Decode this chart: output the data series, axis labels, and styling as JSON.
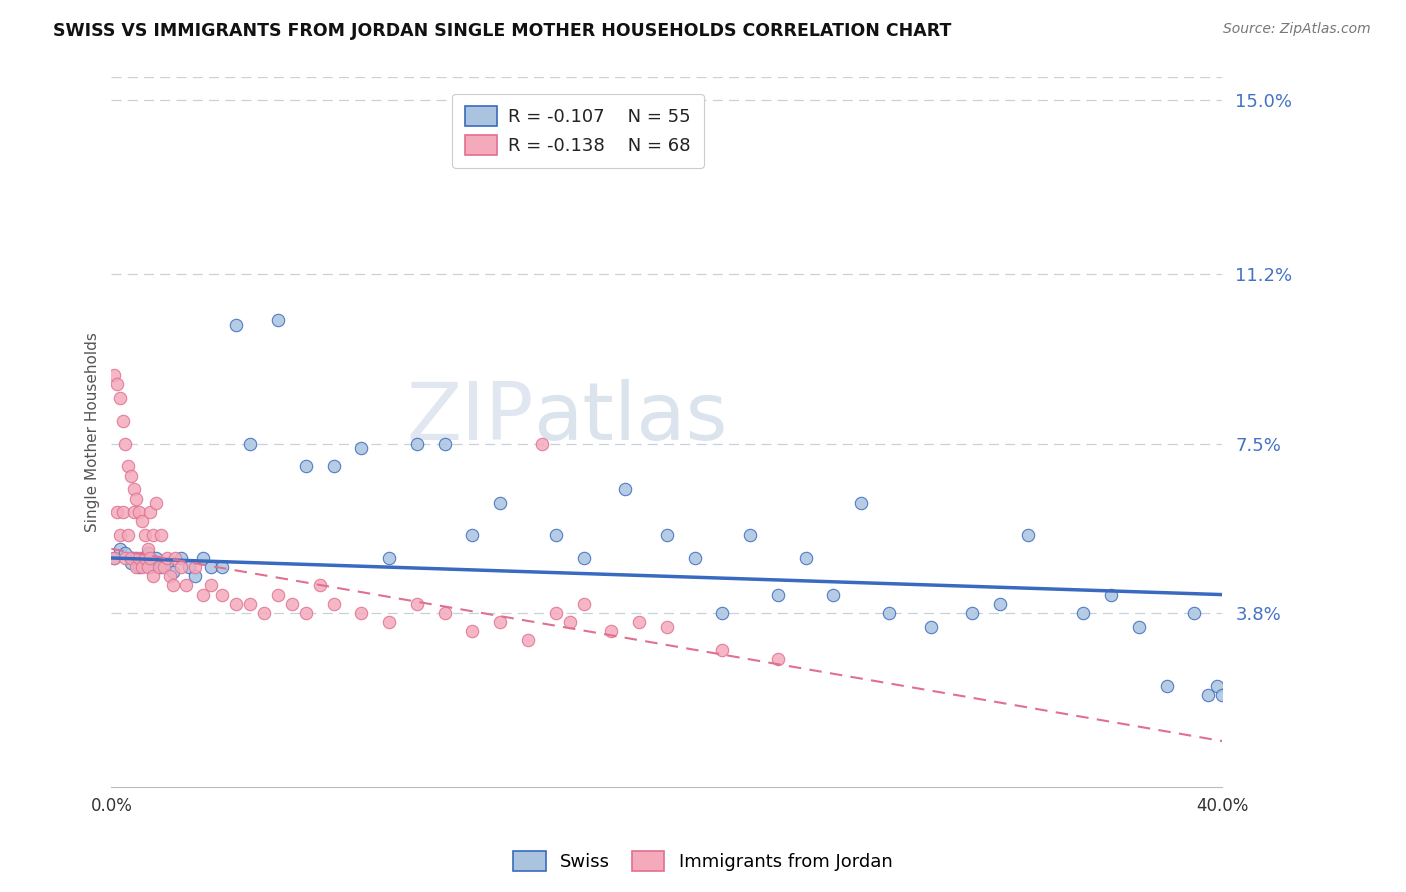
{
  "title": "SWISS VS IMMIGRANTS FROM JORDAN SINGLE MOTHER HOUSEHOLDS CORRELATION CHART",
  "source": "Source: ZipAtlas.com",
  "ylabel": "Single Mother Households",
  "xlim": [
    0.0,
    0.4
  ],
  "ylim": [
    0.0,
    0.155
  ],
  "yticks": [
    0.038,
    0.075,
    0.112,
    0.15
  ],
  "ytick_labels": [
    "3.8%",
    "7.5%",
    "11.2%",
    "15.0%"
  ],
  "swiss_color": "#aac4e0",
  "jordan_color": "#f4aabb",
  "swiss_line_color": "#3a6abf",
  "jordan_line_color": "#e07090",
  "legend_swiss_label": "Swiss",
  "legend_jordan_label": "Immigrants from Jordan",
  "watermark": "ZIPatlas",
  "swiss_x": [
    0.001,
    0.003,
    0.005,
    0.007,
    0.009,
    0.01,
    0.011,
    0.012,
    0.013,
    0.014,
    0.016,
    0.018,
    0.02,
    0.022,
    0.025,
    0.028,
    0.03,
    0.033,
    0.036,
    0.04,
    0.045,
    0.05,
    0.06,
    0.07,
    0.08,
    0.09,
    0.1,
    0.11,
    0.12,
    0.13,
    0.14,
    0.16,
    0.17,
    0.185,
    0.2,
    0.21,
    0.22,
    0.23,
    0.24,
    0.25,
    0.26,
    0.27,
    0.28,
    0.295,
    0.31,
    0.32,
    0.33,
    0.35,
    0.36,
    0.37,
    0.38,
    0.39,
    0.395,
    0.398,
    0.4
  ],
  "swiss_y": [
    0.05,
    0.052,
    0.051,
    0.049,
    0.05,
    0.048,
    0.05,
    0.049,
    0.051,
    0.048,
    0.05,
    0.048,
    0.049,
    0.047,
    0.05,
    0.048,
    0.046,
    0.05,
    0.048,
    0.048,
    0.101,
    0.075,
    0.102,
    0.07,
    0.07,
    0.074,
    0.05,
    0.075,
    0.075,
    0.055,
    0.062,
    0.055,
    0.05,
    0.065,
    0.055,
    0.05,
    0.038,
    0.055,
    0.042,
    0.05,
    0.042,
    0.062,
    0.038,
    0.035,
    0.038,
    0.04,
    0.055,
    0.038,
    0.042,
    0.035,
    0.022,
    0.038,
    0.02,
    0.022,
    0.02
  ],
  "jordan_x": [
    0.001,
    0.001,
    0.002,
    0.002,
    0.003,
    0.003,
    0.004,
    0.004,
    0.005,
    0.005,
    0.006,
    0.006,
    0.007,
    0.007,
    0.008,
    0.008,
    0.009,
    0.009,
    0.01,
    0.01,
    0.011,
    0.011,
    0.012,
    0.012,
    0.013,
    0.013,
    0.014,
    0.014,
    0.015,
    0.015,
    0.016,
    0.017,
    0.018,
    0.019,
    0.02,
    0.021,
    0.022,
    0.023,
    0.025,
    0.027,
    0.03,
    0.033,
    0.036,
    0.04,
    0.045,
    0.05,
    0.055,
    0.06,
    0.065,
    0.07,
    0.075,
    0.08,
    0.09,
    0.1,
    0.11,
    0.12,
    0.13,
    0.14,
    0.15,
    0.155,
    0.16,
    0.165,
    0.17,
    0.18,
    0.19,
    0.2,
    0.22,
    0.24
  ],
  "jordan_y": [
    0.09,
    0.05,
    0.088,
    0.06,
    0.085,
    0.055,
    0.08,
    0.06,
    0.075,
    0.05,
    0.07,
    0.055,
    0.068,
    0.05,
    0.065,
    0.06,
    0.063,
    0.048,
    0.06,
    0.05,
    0.058,
    0.048,
    0.055,
    0.05,
    0.052,
    0.048,
    0.06,
    0.05,
    0.055,
    0.046,
    0.062,
    0.048,
    0.055,
    0.048,
    0.05,
    0.046,
    0.044,
    0.05,
    0.048,
    0.044,
    0.048,
    0.042,
    0.044,
    0.042,
    0.04,
    0.04,
    0.038,
    0.042,
    0.04,
    0.038,
    0.044,
    0.04,
    0.038,
    0.036,
    0.04,
    0.038,
    0.034,
    0.036,
    0.032,
    0.075,
    0.038,
    0.036,
    0.04,
    0.034,
    0.036,
    0.035,
    0.03,
    0.028
  ],
  "swiss_trend_x0": 0.0,
  "swiss_trend_y0": 0.05,
  "swiss_trend_x1": 0.4,
  "swiss_trend_y1": 0.042,
  "jordan_trend_x0": 0.0,
  "jordan_trend_y0": 0.052,
  "jordan_trend_x1": 0.4,
  "jordan_trend_y1": 0.01
}
